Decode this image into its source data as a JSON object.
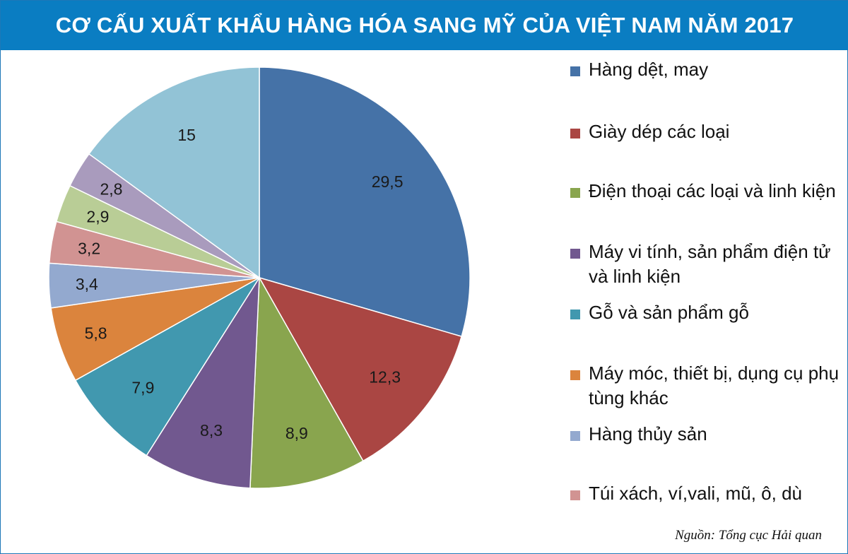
{
  "title": "CƠ CẤU XUẤT KHẨU HÀNG HÓA SANG MỸ CỦA VIỆT NAM NĂM 2017",
  "source": "Nguồn: Tổng cục Hải quan",
  "chart_data": {
    "type": "pie",
    "title": "CƠ CẤU XUẤT KHẨU HÀNG HÓA SANG MỸ CỦA VIỆT NAM NĂM 2017",
    "start_angle_deg": 0,
    "direction": "clockwise",
    "legend_position": "right",
    "slices": [
      {
        "label": "Hàng dệt, may",
        "value": 29.5,
        "value_text": "29,5",
        "color": "#4572a7",
        "in_legend": true
      },
      {
        "label": "Giày dép các loại",
        "value": 12.3,
        "value_text": "12,3",
        "color": "#aa4643",
        "in_legend": true
      },
      {
        "label": "Điện thoại các loại và linh kiện",
        "value": 8.9,
        "value_text": "8,9",
        "color": "#89a54e",
        "in_legend": true
      },
      {
        "label": "Máy vi tính, sản phẩm điện tử và linh kiện",
        "value": 8.3,
        "value_text": "8,3",
        "color": "#71588f",
        "in_legend": true
      },
      {
        "label": "Gỗ và sản phẩm gỗ",
        "value": 7.9,
        "value_text": "7,9",
        "color": "#4198af",
        "in_legend": true
      },
      {
        "label": "Máy móc, thiết bị, dụng cụ phụ tùng khác",
        "value": 5.8,
        "value_text": "5,8",
        "color": "#db843d",
        "in_legend": true
      },
      {
        "label": "Hàng thủy sản",
        "value": 3.4,
        "value_text": "3,4",
        "color": "#93a9cf",
        "in_legend": true
      },
      {
        "label": "Túi xách, ví,vali, mũ, ô, dù",
        "value": 3.2,
        "value_text": "3,2",
        "color": "#d19392",
        "in_legend": true
      },
      {
        "label": "",
        "value": 2.9,
        "value_text": "2,9",
        "color": "#b9cd96",
        "in_legend": false
      },
      {
        "label": "",
        "value": 2.8,
        "value_text": "2,8",
        "color": "#a99bbd",
        "in_legend": false
      },
      {
        "label": "",
        "value": 15,
        "value_text": "15",
        "color": "#92c3d6",
        "in_legend": false
      }
    ]
  }
}
